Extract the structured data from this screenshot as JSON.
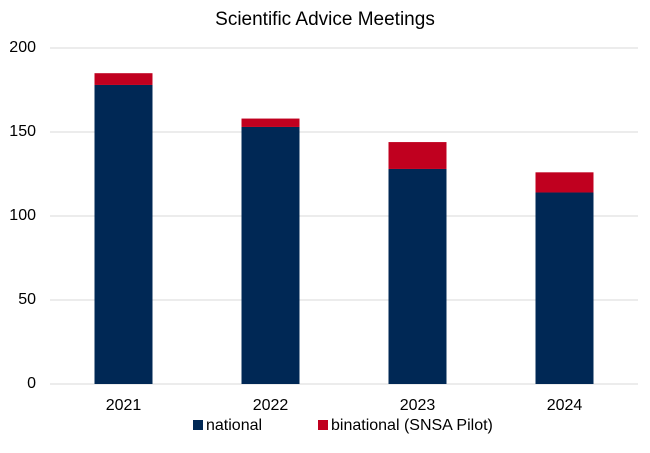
{
  "chart_data": {
    "type": "stacked_bar",
    "title": "Scientific Advice Meetings",
    "categories": [
      "2021",
      "2022",
      "2023",
      "2024"
    ],
    "series": [
      {
        "name": "national",
        "color": "#002855",
        "values": [
          178,
          153,
          128,
          114
        ]
      },
      {
        "name": "binational (SNSA Pilot)",
        "color": "#c0001f",
        "values": [
          7,
          5,
          16,
          12
        ]
      }
    ],
    "ylim": [
      0,
      200
    ],
    "yticks": [
      0,
      50,
      100,
      150,
      200
    ],
    "grid": true,
    "legend": "bottom"
  }
}
